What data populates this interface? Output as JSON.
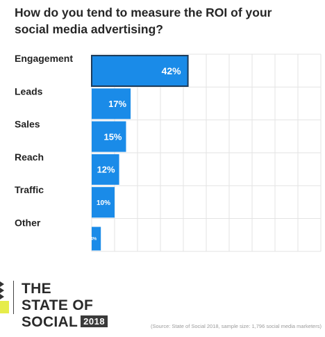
{
  "title": "How do you tend to measure the ROI of your social media advertising?",
  "chart_data": {
    "type": "bar",
    "orientation": "horizontal",
    "title": "How do you tend to measure the ROI of your social media advertising?",
    "categories": [
      "Engagement",
      "Leads",
      "Sales",
      "Reach",
      "Traffic",
      "Other"
    ],
    "values": [
      42,
      17,
      15,
      12,
      10,
      4
    ],
    "value_labels": [
      "42%",
      "17%",
      "15%",
      "12%",
      "10%",
      "4%"
    ],
    "unit": "%",
    "xlim": [
      0,
      100
    ],
    "grid": true,
    "highlight_index": 0
  },
  "colors": {
    "bar": "#1a8be8",
    "bar_highlight": "#1a8be8",
    "highlight_outline": "#1c3b5a",
    "grid": "#e3e3e3",
    "text": "#222222"
  },
  "brand": {
    "line1": "THE",
    "line2": "STATE OF",
    "line3": "SOCIAL",
    "year": "2018",
    "mark_icon": "state-of-social-logo-mark"
  },
  "source": "(Source: State of Social 2018, sample size: 1,796 social media marketers)"
}
